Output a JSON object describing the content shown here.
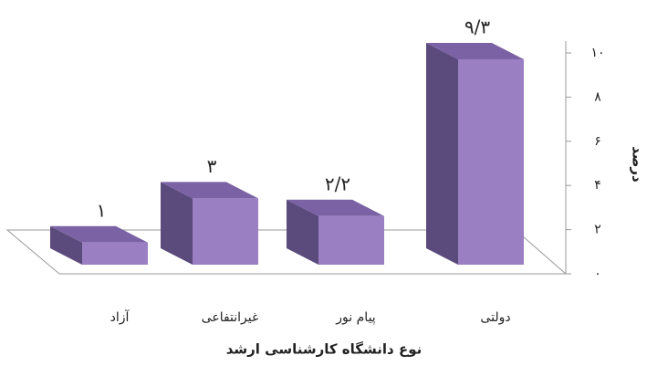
{
  "chart_data": {
    "type": "bar3d",
    "x_label": "نوع دانشگاه کارشناسی ارشد",
    "y_label": "درصد",
    "categories": [
      "آزاد",
      "غیرانتفاعی",
      "پیام نور",
      "دولتی"
    ],
    "values": [
      1,
      3,
      2.2,
      9.3
    ],
    "value_labels": [
      "۱",
      "۳",
      "۲/۲",
      "۹/۳"
    ],
    "colors": {
      "front": "#9a80c2",
      "side": "#5b4a7c",
      "top": "#7a62a4"
    },
    "ylim": [
      0,
      10
    ],
    "yticks": [
      {
        "value": 0,
        "label": "۰"
      },
      {
        "value": 2,
        "label": "۲"
      },
      {
        "value": 4,
        "label": "۴"
      },
      {
        "value": 6,
        "label": "۶"
      },
      {
        "value": 8,
        "label": "۸"
      },
      {
        "value": 10,
        "label": "۱۰"
      }
    ]
  }
}
